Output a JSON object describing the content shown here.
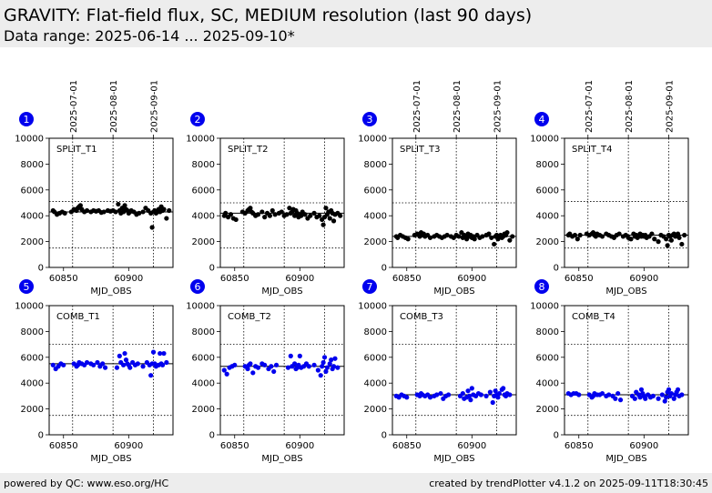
{
  "header": {
    "title": "GRAVITY: Flat-field flux, SC, MEDIUM resolution (last 90 days)",
    "subtitle": "Data range: 2025-06-14 ... 2025-09-10*"
  },
  "footer": {
    "left": "powered by QC: www.eso.org/HC",
    "right": "created by trendPlotter v4.1.2 on 2025-09-11T18:30:45"
  },
  "colors": {
    "split": "#000000",
    "comb": "#0000ee",
    "badge": "#0000ee"
  },
  "chart_data": [
    {
      "type": "scatter",
      "number": "1",
      "label": "SPLIT_T1",
      "color": "black",
      "xlabel": "MJD_OBS",
      "xlim": [
        60839,
        60934
      ],
      "ylim": [
        0,
        10000
      ],
      "xticks": [
        60850,
        60900
      ],
      "yticks": [
        0,
        2000,
        4000,
        6000,
        8000,
        10000
      ],
      "date_ticks": [
        {
          "label": "2025-07-01",
          "x": 60857
        },
        {
          "label": "2025-08-01",
          "x": 60888
        },
        {
          "label": "2025-09-01",
          "x": 60919
        }
      ],
      "ref_line": 4300,
      "limits": [
        1500,
        5100
      ],
      "points": {
        "x": [
          60842,
          60843,
          60845,
          60847,
          60849,
          60851,
          60856,
          60858,
          60860,
          60861,
          60862,
          60863,
          60864,
          60866,
          60868,
          60871,
          60873,
          60875,
          60877,
          60879,
          60881,
          60884,
          60886,
          60888,
          60890,
          60892,
          60893,
          60894,
          60895,
          60896,
          60897,
          60898,
          60899,
          60900,
          60901,
          60902,
          60904,
          60906,
          60908,
          60911,
          60913,
          60915,
          60917,
          60918,
          60919,
          60920,
          60921,
          60922,
          60923,
          60924,
          60925,
          60926,
          60927,
          60929,
          60931
        ],
        "y": [
          4400,
          4300,
          4100,
          4200,
          4300,
          4200,
          4300,
          4500,
          4400,
          4600,
          4700,
          4800,
          4500,
          4300,
          4400,
          4300,
          4400,
          4350,
          4400,
          4250,
          4300,
          4400,
          4350,
          4400,
          4300,
          4900,
          4400,
          4200,
          4600,
          4300,
          4800,
          4500,
          4400,
          4200,
          4300,
          4400,
          4300,
          4100,
          4200,
          4300,
          4600,
          4400,
          4200,
          3100,
          4300,
          4400,
          4200,
          4300,
          4500,
          4300,
          4700,
          4400,
          4500,
          3800,
          4400
        ]
      }
    },
    {
      "type": "scatter",
      "number": "2",
      "label": "SPLIT_T2",
      "color": "black",
      "xlabel": "MJD_OBS",
      "xlim": [
        60839,
        60934
      ],
      "ylim": [
        0,
        10000
      ],
      "xticks": [
        60850,
        60900
      ],
      "yticks": [
        0,
        2000,
        4000,
        6000,
        8000,
        10000
      ],
      "ref_line": 4200,
      "limits": [
        1500,
        5000
      ],
      "points": {
        "x": [
          60842,
          60843,
          60845,
          60847,
          60849,
          60851,
          60856,
          60858,
          60860,
          60861,
          60862,
          60863,
          60864,
          60866,
          60868,
          60871,
          60873,
          60875,
          60877,
          60879,
          60881,
          60884,
          60886,
          60888,
          60890,
          60892,
          60893,
          60894,
          60895,
          60896,
          60897,
          60898,
          60899,
          60900,
          60901,
          60902,
          60904,
          60906,
          60908,
          60911,
          60913,
          60915,
          60917,
          60918,
          60919,
          60920,
          60921,
          60922,
          60923,
          60924,
          60925,
          60926,
          60927,
          60929,
          60931
        ],
        "y": [
          4000,
          4200,
          3900,
          4100,
          3800,
          3700,
          4300,
          4200,
          4400,
          4500,
          4600,
          4300,
          4200,
          4000,
          4100,
          4300,
          3900,
          4200,
          4000,
          4400,
          4100,
          4200,
          4300,
          4000,
          4100,
          4600,
          4200,
          4300,
          4500,
          4000,
          4400,
          4200,
          3900,
          4100,
          4000,
          4300,
          4100,
          3800,
          4000,
          4200,
          3900,
          4000,
          3700,
          3300,
          3900,
          4600,
          4100,
          4300,
          3800,
          4400,
          4200,
          3600,
          4100,
          4200,
          4000
        ]
      }
    },
    {
      "type": "scatter",
      "number": "3",
      "label": "SPLIT_T3",
      "color": "black",
      "xlabel": "MJD_OBS",
      "xlim": [
        60839,
        60934
      ],
      "ylim": [
        0,
        10000
      ],
      "xticks": [
        60850,
        60900
      ],
      "yticks": [
        0,
        2000,
        4000,
        6000,
        8000,
        10000
      ],
      "date_ticks": [
        {
          "label": "2025-07-01",
          "x": 60857
        },
        {
          "label": "2025-08-01",
          "x": 60888
        },
        {
          "label": "2025-09-01",
          "x": 60919
        }
      ],
      "ref_line": 2400,
      "limits": [
        1500,
        5000
      ],
      "points": {
        "x": [
          60842,
          60843,
          60845,
          60847,
          60849,
          60851,
          60856,
          60858,
          60860,
          60861,
          60862,
          60863,
          60864,
          60866,
          60868,
          60871,
          60873,
          60875,
          60877,
          60879,
          60881,
          60884,
          60886,
          60888,
          60890,
          60892,
          60893,
          60894,
          60895,
          60896,
          60897,
          60898,
          60899,
          60900,
          60901,
          60902,
          60904,
          60906,
          60908,
          60911,
          60913,
          60915,
          60917,
          60918,
          60919,
          60920,
          60921,
          60922,
          60923,
          60924,
          60925,
          60926,
          60927,
          60929,
          60931
        ],
        "y": [
          2400,
          2300,
          2500,
          2400,
          2300,
          2200,
          2500,
          2600,
          2400,
          2700,
          2500,
          2600,
          2400,
          2500,
          2300,
          2400,
          2500,
          2400,
          2300,
          2400,
          2500,
          2400,
          2300,
          2500,
          2400,
          2700,
          2300,
          2500,
          2400,
          2200,
          2600,
          2400,
          2500,
          2300,
          2400,
          2200,
          2500,
          2300,
          2400,
          2500,
          2600,
          2300,
          1800,
          2400,
          2500,
          2200,
          2400,
          2500,
          2300,
          2400,
          2600,
          2500,
          2700,
          2100,
          2400
        ]
      }
    },
    {
      "type": "scatter",
      "number": "4",
      "label": "SPLIT_T4",
      "color": "black",
      "xlabel": "MJD_OBS",
      "xlim": [
        60839,
        60934
      ],
      "ylim": [
        0,
        10000
      ],
      "xticks": [
        60850,
        60900
      ],
      "yticks": [
        0,
        2000,
        4000,
        6000,
        8000,
        10000
      ],
      "date_ticks": [
        {
          "label": "2025-07-01",
          "x": 60857
        },
        {
          "label": "2025-08-01",
          "x": 60888
        },
        {
          "label": "2025-09-01",
          "x": 60919
        }
      ],
      "ref_line": 2500,
      "limits": [
        1500,
        5100
      ],
      "points": {
        "x": [
          60842,
          60843,
          60845,
          60847,
          60849,
          60851,
          60856,
          60858,
          60860,
          60861,
          60862,
          60863,
          60864,
          60866,
          60868,
          60871,
          60873,
          60875,
          60877,
          60879,
          60881,
          60884,
          60886,
          60888,
          60890,
          60892,
          60893,
          60894,
          60895,
          60896,
          60897,
          60898,
          60899,
          60900,
          60901,
          60902,
          60904,
          60906,
          60908,
          60911,
          60913,
          60915,
          60917,
          60918,
          60919,
          60920,
          60921,
          60922,
          60923,
          60924,
          60925,
          60926,
          60927,
          60929,
          60931
        ],
        "y": [
          2500,
          2600,
          2400,
          2500,
          2200,
          2500,
          2600,
          2500,
          2600,
          2700,
          2500,
          2400,
          2600,
          2500,
          2400,
          2600,
          2500,
          2400,
          2300,
          2500,
          2600,
          2400,
          2500,
          2300,
          2200,
          2600,
          2400,
          2500,
          2300,
          2400,
          2600,
          2400,
          2500,
          2400,
          2500,
          2300,
          2400,
          2600,
          2200,
          2000,
          2500,
          2400,
          2200,
          1700,
          2500,
          2400,
          2100,
          2500,
          2600,
          2400,
          2500,
          2600,
          2300,
          1800,
          2500
        ]
      }
    },
    {
      "type": "scatter",
      "number": "5",
      "label": "COMB_T1",
      "color": "blue",
      "xlabel": "MJD_OBS",
      "xlim": [
        60839,
        60934
      ],
      "ylim": [
        0,
        10000
      ],
      "xticks": [
        60850,
        60900
      ],
      "yticks": [
        0,
        2000,
        4000,
        6000,
        8000,
        10000
      ],
      "ref_line": 5500,
      "limits": [
        1500,
        7000
      ],
      "points": {
        "x": [
          60842,
          60844,
          60846,
          60848,
          60850,
          60858,
          60860,
          60861,
          60862,
          60864,
          60866,
          60868,
          60871,
          60873,
          60876,
          60878,
          60880,
          60882,
          60891,
          60893,
          60894,
          60896,
          60897,
          60898,
          60899,
          60900,
          60901,
          60903,
          60905,
          60907,
          60911,
          60914,
          60916,
          60917,
          60918,
          60919,
          60920,
          60921,
          60923,
          60924,
          60925,
          60926,
          60927,
          60929
        ],
        "y": [
          5400,
          5100,
          5300,
          5500,
          5400,
          5500,
          5300,
          5400,
          5600,
          5500,
          5400,
          5600,
          5500,
          5400,
          5600,
          5300,
          5500,
          5200,
          5200,
          6100,
          5600,
          5400,
          6300,
          5800,
          5500,
          5400,
          5200,
          5600,
          5400,
          5500,
          5300,
          5600,
          5400,
          4600,
          5500,
          6400,
          5500,
          5300,
          5400,
          6300,
          5500,
          5400,
          6300,
          5600
        ]
      }
    },
    {
      "type": "scatter",
      "number": "6",
      "label": "COMB_T2",
      "color": "blue",
      "xlabel": "MJD_OBS",
      "xlim": [
        60839,
        60934
      ],
      "ylim": [
        0,
        10000
      ],
      "xticks": [
        60850,
        60900
      ],
      "yticks": [
        0,
        2000,
        4000,
        6000,
        8000,
        10000
      ],
      "ref_line": 5300,
      "limits": [
        1500,
        7000
      ],
      "points": {
        "x": [
          60842,
          60844,
          60846,
          60848,
          60850,
          60858,
          60860,
          60861,
          60862,
          60864,
          60866,
          60868,
          60871,
          60873,
          60876,
          60878,
          60880,
          60882,
          60891,
          60893,
          60894,
          60896,
          60897,
          60898,
          60899,
          60900,
          60901,
          60903,
          60905,
          60907,
          60911,
          60914,
          60916,
          60917,
          60918,
          60919,
          60920,
          60921,
          60923,
          60924,
          60925,
          60926,
          60927,
          60929
        ],
        "y": [
          5000,
          4700,
          5200,
          5300,
          5400,
          5300,
          5100,
          5400,
          5500,
          4800,
          5300,
          5200,
          5500,
          5400,
          5100,
          5300,
          4900,
          5400,
          5200,
          6100,
          5300,
          5500,
          5100,
          5200,
          5400,
          6100,
          5200,
          5300,
          5500,
          5300,
          5400,
          5000,
          4600,
          5300,
          5600,
          6000,
          4900,
          5200,
          5500,
          5800,
          5100,
          5300,
          5900,
          5200
        ]
      }
    },
    {
      "type": "scatter",
      "number": "7",
      "label": "COMB_T3",
      "color": "blue",
      "xlabel": "MJD_OBS",
      "xlim": [
        60839,
        60934
      ],
      "ylim": [
        0,
        10000
      ],
      "xticks": [
        60850,
        60900
      ],
      "yticks": [
        0,
        2000,
        4000,
        6000,
        8000,
        10000
      ],
      "ref_line": 3100,
      "limits": [
        1500,
        7000
      ],
      "points": {
        "x": [
          60842,
          60844,
          60846,
          60848,
          60850,
          60858,
          60860,
          60861,
          60862,
          60864,
          60866,
          60868,
          60871,
          60873,
          60876,
          60878,
          60880,
          60882,
          60891,
          60893,
          60894,
          60896,
          60897,
          60898,
          60899,
          60900,
          60901,
          60903,
          60905,
          60907,
          60911,
          60914,
          60916,
          60917,
          60918,
          60919,
          60920,
          60921,
          60923,
          60924,
          60925,
          60926,
          60927,
          60929
        ],
        "y": [
          3000,
          2900,
          3100,
          3000,
          2900,
          3100,
          3000,
          3200,
          3100,
          3000,
          3100,
          2900,
          3000,
          3100,
          3200,
          2800,
          3000,
          3100,
          3000,
          3200,
          2800,
          2900,
          3400,
          3000,
          2700,
          3600,
          3100,
          3000,
          3200,
          3100,
          3000,
          3300,
          2500,
          3000,
          3400,
          3100,
          2900,
          3200,
          3500,
          3600,
          3100,
          3000,
          3200,
          3100
        ]
      }
    },
    {
      "type": "scatter",
      "number": "8",
      "label": "COMB_T4",
      "color": "blue",
      "xlabel": "MJD_OBS",
      "xlim": [
        60839,
        60934
      ],
      "ylim": [
        0,
        10000
      ],
      "xticks": [
        60850,
        60900
      ],
      "yticks": [
        0,
        2000,
        4000,
        6000,
        8000,
        10000
      ],
      "ref_line": 3100,
      "limits": [
        1500,
        7000
      ],
      "points": {
        "x": [
          60842,
          60844,
          60846,
          60848,
          60850,
          60858,
          60860,
          60861,
          60862,
          60864,
          60866,
          60868,
          60871,
          60873,
          60876,
          60878,
          60880,
          60882,
          60891,
          60893,
          60894,
          60896,
          60897,
          60898,
          60899,
          60900,
          60901,
          60903,
          60905,
          60907,
          60911,
          60914,
          60916,
          60917,
          60918,
          60919,
          60920,
          60921,
          60923,
          60924,
          60925,
          60926,
          60927,
          60929
        ],
        "y": [
          3200,
          3100,
          3200,
          3200,
          3100,
          3100,
          2900,
          3000,
          3200,
          3100,
          3100,
          3200,
          3000,
          3100,
          3000,
          2800,
          3200,
          2700,
          3000,
          2800,
          3300,
          3100,
          2900,
          3500,
          3200,
          3000,
          2800,
          3100,
          2900,
          3000,
          2800,
          3100,
          2600,
          2900,
          3300,
          3500,
          3000,
          3200,
          2800,
          3100,
          3300,
          3500,
          3000,
          3100
        ]
      }
    }
  ]
}
